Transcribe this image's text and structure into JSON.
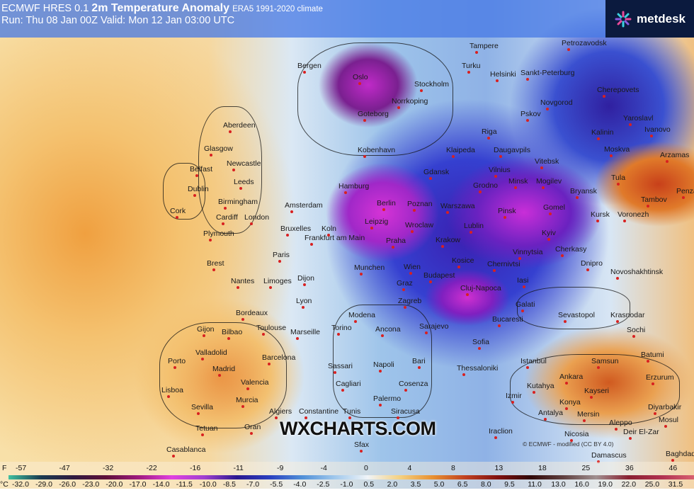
{
  "header": {
    "model": "ECMWF HRES 0.1",
    "title": "2m Temperature Anomaly",
    "climate": "ERA5 1991-2020 climate",
    "run": "Run: Thu 08 Jan 00Z Valid: Mon 12 Jan 03:00 UTC"
  },
  "brand": {
    "name": "metdesk",
    "icon": "metdesk-star-icon"
  },
  "watermark": "WXCHARTS.COM",
  "copyright": "© ECMWF - modified (CC BY 4.0)",
  "legend": {
    "f_unit": "F",
    "c_unit": "°C",
    "f": [
      "-57",
      "-47",
      "-32",
      "-22",
      "-16",
      "-11",
      "-9",
      "-4",
      "0",
      "4",
      "8",
      "13",
      "18",
      "25",
      "36",
      "46"
    ],
    "c": [
      "-32.0",
      "-29.0",
      "-26.0",
      "-23.0",
      "-20.0",
      "-17.0",
      "-14.0",
      "-11.5",
      "-10.0",
      "-8.5",
      "-7.0",
      "-5.5",
      "-4.0",
      "-2.5",
      "-1.0",
      "0.5",
      "2.0",
      "3.5",
      "5.0",
      "6.5",
      "8.0",
      "9.5",
      "11.0",
      "13.0",
      "16.0",
      "19.0",
      "22.0",
      "25.0",
      "31.5"
    ]
  },
  "cities": [
    "Aberdeen",
    "Glasgow",
    "Newcastle",
    "Belfast",
    "Leeds",
    "Dublin",
    "Birmingham",
    "Cork",
    "Cardiff",
    "London",
    "Plymouth",
    "Paris",
    "Brest",
    "Nantes",
    "Limoges",
    "Bordeaux",
    "Dijon",
    "Lyon",
    "Toulouse",
    "Gijon",
    "Bilbao",
    "Marseille",
    "Valladolid",
    "Porto",
    "Madrid",
    "Barcelona",
    "Valencia",
    "Lisboa",
    "Murcia",
    "Sevilla",
    "Tetuan",
    "Oran",
    "Algiers",
    "Constantine",
    "Tunis",
    "Casablanca",
    "Sfax",
    "Sassari",
    "Cagliari",
    "Palermo",
    "Siracusa",
    "Cosenza",
    "Napoli",
    "Bari",
    "Torino",
    "Modena",
    "Ancona",
    "Zagreb",
    "Graz",
    "Wien",
    "Munchen",
    "Praha",
    "Frankfurt am Main",
    "Bruxelles",
    "Koln",
    "Amsterdam",
    "Hamburg",
    "Berlin",
    "Leipzig",
    "Poznan",
    "Wroclaw",
    "Warszawa",
    "Krakow",
    "Lublin",
    "Kosice",
    "Budapest",
    "Cluj-Napoca",
    "Bucaresti",
    "Sofia",
    "Sarajevo",
    "Thessaloniki",
    "Istanbul",
    "Izmir",
    "Ankara",
    "Samsun",
    "Kutahya",
    "Konya",
    "Kayseri",
    "Antalya",
    "Mersin",
    "Erzurum",
    "Batumi",
    "Sochi",
    "Krasnodar",
    "Sevastopol",
    "Dnipro",
    "Novoshakhtinsk",
    "Kyiv",
    "Vinnytsia",
    "Chernivtsi",
    "Iasi",
    "Galati",
    "Cherkasy",
    "Kursk",
    "Voronezh",
    "Tambov",
    "Penza",
    "Bryansk",
    "Gomel",
    "Minsk",
    "Mogilev",
    "Pinsk",
    "Grodno",
    "Vilnius",
    "Vitebsk",
    "Daugavpils",
    "Riga",
    "Klaipeda",
    "Gdansk",
    "Kalinin",
    "Moskva",
    "Tula",
    "Arzamas",
    "Ivanovo",
    "Yaroslavl",
    "Cherepovets",
    "Novgorod",
    "Pskov",
    "Sankt-Peterburg",
    "Petrozavodsk",
    "Helsinki",
    "Turku",
    "Tampere",
    "Stockholm",
    "Norrkoping",
    "Oslo",
    "Bergen",
    "Goteborg",
    "Kobenhavn",
    "Diyarbakir",
    "Mosul",
    "Deir El-Zar",
    "Aleppo",
    "Nicosia",
    "Damascus",
    "Baghdad",
    "Iraclion"
  ]
}
